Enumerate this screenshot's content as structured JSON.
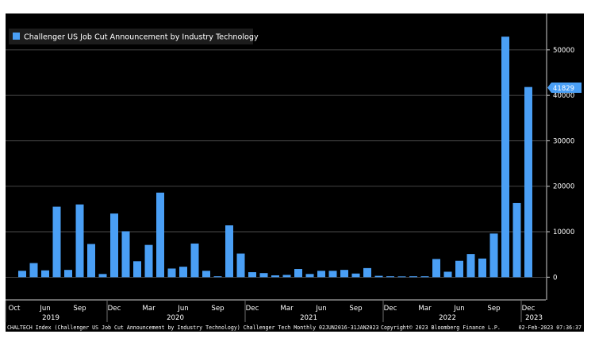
{
  "chart_data": {
    "type": "bar",
    "title": "",
    "legend": {
      "entries": [
        "Challenger US Job Cut Announcement by Industry Technology"
      ],
      "placement": "top-left"
    },
    "series": [
      {
        "name": "Challenger US Job Cut Announcement by Industry Technology",
        "color": "#4a9ff5",
        "values": [
          1400,
          3100,
          1500,
          15500,
          1600,
          16000,
          7300,
          700,
          14000,
          10100,
          3500,
          7100,
          18600,
          1900,
          2300,
          7400,
          1400,
          200,
          11400,
          5200,
          1100,
          900,
          400,
          500,
          1800,
          700,
          1400,
          1400,
          1600,
          800,
          2000,
          300,
          200,
          100,
          200,
          200,
          4000,
          1200,
          3600,
          5100,
          4100,
          9600,
          52900,
          16300,
          41829
        ]
      }
    ],
    "x_axis": {
      "month_ticks": [
        "Oct",
        "Jun",
        "Sep",
        "Dec",
        "Mar",
        "Jun",
        "Sep",
        "Dec",
        "Mar",
        "Jun",
        "Sep",
        "Dec",
        "Mar",
        "Jun",
        "Sep",
        "Dec"
      ],
      "year_labels": [
        "2019",
        "2020",
        "2021",
        "2022",
        "2023"
      ]
    },
    "y_axis": {
      "ticks": [
        "0",
        "10000",
        "20000",
        "30000",
        "40000",
        "50000"
      ],
      "range": [
        -5000,
        58000
      ],
      "position": "right"
    },
    "last_value_label": "41829",
    "grid": true,
    "colors": {
      "background": "#000000",
      "bar": "#4a9ff5",
      "grid": "#5a5a5a",
      "axis_text": "#ffffff",
      "last_value_badge": "#4a9ff5"
    }
  },
  "footer": {
    "left": "CHALTECH Index (Challenger US Job Cut Announcement by Industry Technology) Challenger Tech  Monthly 02JUN2016-31JAN2023",
    "center": "Copyright© 2023 Bloomberg Finance L.P.",
    "right": "02-Feb-2023 07:36:37"
  }
}
